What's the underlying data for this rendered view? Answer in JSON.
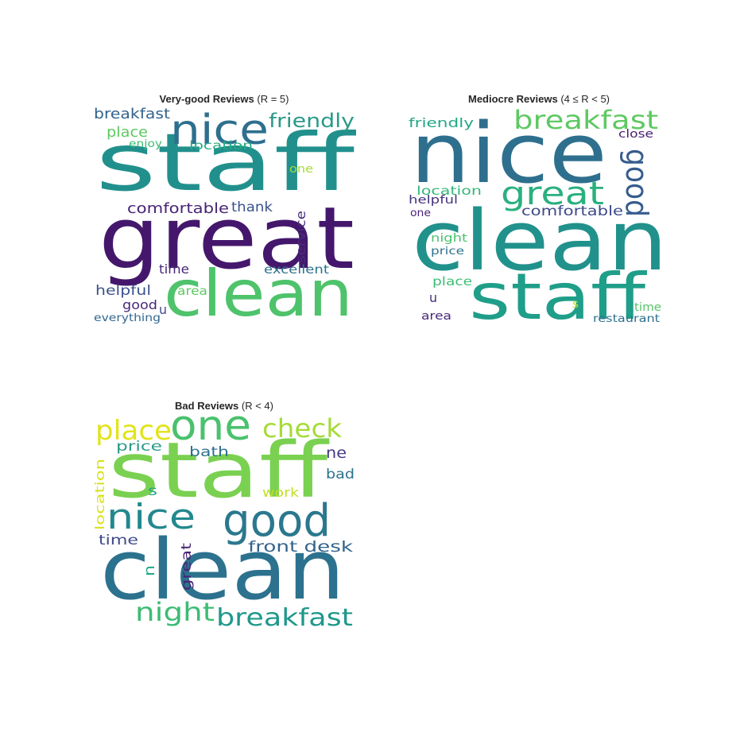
{
  "panels": [
    {
      "title_bold": "Very-good Reviews",
      "title_rest": "(R = 5)",
      "words": [
        {
          "text": "staff",
          "color": "#21908d"
        },
        {
          "text": "great",
          "color": "#44176c"
        },
        {
          "text": "clean",
          "color": "#4ec36b"
        },
        {
          "text": "nice",
          "color": "#2e6f8e"
        },
        {
          "text": "friendly",
          "color": "#2a9a8a"
        },
        {
          "text": "breakfast",
          "color": "#33638d"
        },
        {
          "text": "place",
          "color": "#5ec962"
        },
        {
          "text": "enjoy",
          "color": "#3dbc74"
        },
        {
          "text": "location",
          "color": "#25ab82"
        },
        {
          "text": "one",
          "color": "#a5db36"
        },
        {
          "text": "comfortable",
          "color": "#482475"
        },
        {
          "text": "thank",
          "color": "#3b528b"
        },
        {
          "text": "service",
          "color": "#472d7b"
        },
        {
          "text": "time",
          "color": "#482878"
        },
        {
          "text": "excellent",
          "color": "#2c728e"
        },
        {
          "text": "helpful",
          "color": "#3b528b"
        },
        {
          "text": "area",
          "color": "#5ec962"
        },
        {
          "text": "good",
          "color": "#482878"
        },
        {
          "text": "u",
          "color": "#3e4a89"
        },
        {
          "text": "everything",
          "color": "#31688e"
        }
      ]
    },
    {
      "title_bold": "Mediocre Reviews",
      "title_rest": "(4 ≤ R < 5)",
      "words": [
        {
          "text": "nice",
          "color": "#2e6f8e"
        },
        {
          "text": "clean",
          "color": "#21918c"
        },
        {
          "text": "staff",
          "color": "#1f9e89"
        },
        {
          "text": "breakfast",
          "color": "#5ec962"
        },
        {
          "text": "great",
          "color": "#2ab07f"
        },
        {
          "text": "good",
          "color": "#365c8d"
        },
        {
          "text": "friendly",
          "color": "#22a884"
        },
        {
          "text": "close",
          "color": "#482071"
        },
        {
          "text": "location",
          "color": "#35b779"
        },
        {
          "text": "helpful",
          "color": "#46327e"
        },
        {
          "text": "one",
          "color": "#482475"
        },
        {
          "text": "comfortable",
          "color": "#3e4a89"
        },
        {
          "text": "night",
          "color": "#4ac16d"
        },
        {
          "text": "price",
          "color": "#2c728e"
        },
        {
          "text": "place",
          "color": "#3dbc74"
        },
        {
          "text": "u",
          "color": "#472d7b"
        },
        {
          "text": "s",
          "color": "#c8e020"
        },
        {
          "text": "time",
          "color": "#54c568"
        },
        {
          "text": "area",
          "color": "#482878"
        },
        {
          "text": "restaurant",
          "color": "#2d708e"
        }
      ]
    },
    {
      "title_bold": "Bad Reviews",
      "title_rest": "(R < 4)",
      "words": [
        {
          "text": "staff",
          "color": "#7ad151"
        },
        {
          "text": "clean",
          "color": "#2c728e"
        },
        {
          "text": "good",
          "color": "#2a788e"
        },
        {
          "text": "nice",
          "color": "#23888e"
        },
        {
          "text": "place",
          "color": "#e2e418"
        },
        {
          "text": "one",
          "color": "#4ac16d"
        },
        {
          "text": "check",
          "color": "#a5db36"
        },
        {
          "text": "price",
          "color": "#2a9a8a"
        },
        {
          "text": "bath",
          "color": "#2d708e"
        },
        {
          "text": "ne",
          "color": "#443983"
        },
        {
          "text": "bad",
          "color": "#2c728e"
        },
        {
          "text": "location",
          "color": "#d8e219"
        },
        {
          "text": "s",
          "color": "#20a386"
        },
        {
          "text": "work",
          "color": "#c2df23"
        },
        {
          "text": "time",
          "color": "#3e4a89"
        },
        {
          "text": "front desk",
          "color": "#33638d"
        },
        {
          "text": "u",
          "color": "#22a884"
        },
        {
          "text": "great",
          "color": "#482475"
        },
        {
          "text": "night",
          "color": "#3dbc74"
        },
        {
          "text": "breakfast",
          "color": "#1f988b"
        }
      ]
    }
  ]
}
